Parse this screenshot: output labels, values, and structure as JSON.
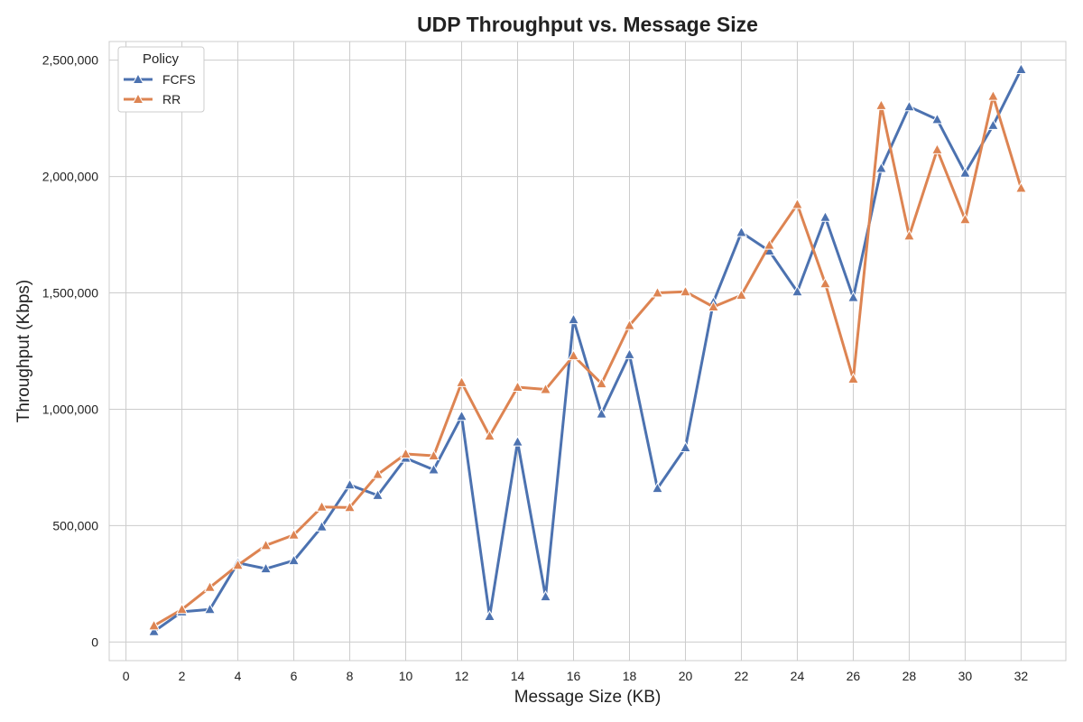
{
  "chart_data": {
    "type": "line",
    "title": "UDP Throughput vs. Message Size",
    "xlabel": "Message Size (KB)",
    "ylabel": "Throughput (Kbps)",
    "xlim": [
      -0.6,
      33.6
    ],
    "ylim": [
      -80000,
      2580000
    ],
    "x_ticks": [
      0,
      2,
      4,
      6,
      8,
      10,
      12,
      14,
      16,
      18,
      20,
      22,
      24,
      26,
      28,
      30,
      32
    ],
    "y_ticks": [
      0,
      500000,
      1000000,
      1500000,
      2000000,
      2500000
    ],
    "y_tick_labels": [
      "0",
      "500,000",
      "1,000,000",
      "1,500,000",
      "2,000,000",
      "2,500,000"
    ],
    "grid": true,
    "legend": {
      "title": "Policy",
      "placement": "top-left"
    },
    "x": [
      1,
      2,
      3,
      4,
      5,
      6,
      7,
      8,
      9,
      10,
      11,
      12,
      13,
      14,
      15,
      16,
      17,
      18,
      19,
      20,
      21,
      22,
      23,
      24,
      25,
      26,
      27,
      28,
      29,
      30,
      31,
      32
    ],
    "series": [
      {
        "name": "FCFS",
        "color": "#4c72b0",
        "marker": "triangle",
        "values": [
          45000,
          130000,
          140000,
          340000,
          315000,
          350000,
          495000,
          675000,
          630000,
          790000,
          740000,
          970000,
          110000,
          860000,
          195000,
          1385000,
          980000,
          1235000,
          660000,
          835000,
          1460000,
          1760000,
          1680000,
          1505000,
          1825000,
          1480000,
          2035000,
          2300000,
          2245000,
          2015000,
          2220000,
          2460000
        ]
      },
      {
        "name": "RR",
        "color": "#dd8452",
        "marker": "triangle",
        "values": [
          70000,
          140000,
          235000,
          330000,
          415000,
          460000,
          580000,
          578000,
          720000,
          808000,
          800000,
          1115000,
          885000,
          1095000,
          1085000,
          1230000,
          1110000,
          1360000,
          1500000,
          1505000,
          1440000,
          1490000,
          1705000,
          1880000,
          1540000,
          1130000,
          2305000,
          1745000,
          2115000,
          1815000,
          2345000,
          1950000
        ]
      }
    ]
  }
}
